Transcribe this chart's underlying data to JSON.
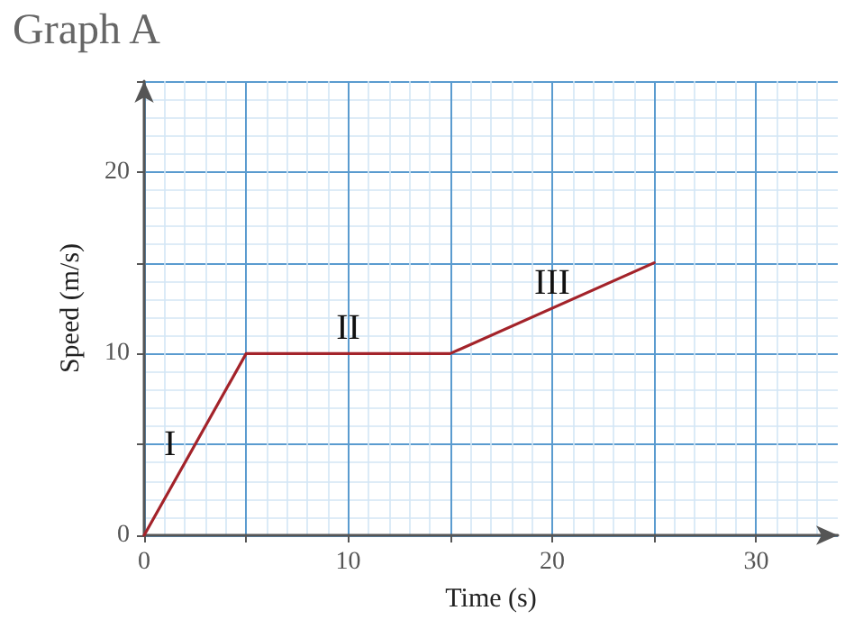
{
  "chart_data": {
    "type": "line",
    "title": "Graph A",
    "xlabel": "Time (s)",
    "ylabel": "Speed (m/s)",
    "x": [
      0,
      5,
      15,
      25
    ],
    "series": [
      {
        "color": "#a3232a",
        "values": [
          0,
          10,
          10,
          15
        ]
      }
    ],
    "xlim": [
      0,
      34
    ],
    "xticks": [
      0,
      {
        "value": 5,
        "label": null
      },
      10,
      {
        "value": 15,
        "label": null
      },
      20,
      {
        "value": 25,
        "label": null
      },
      30
    ],
    "ylim": [
      0,
      25
    ],
    "yticks": [
      0,
      {
        "value": 5,
        "label": null
      },
      10,
      {
        "value": 15,
        "label": null
      },
      20,
      {
        "value": 25,
        "label": null
      }
    ],
    "grid": true,
    "marker": "none",
    "line_style": "solid",
    "annotations": [
      "I",
      "II",
      "III"
    ]
  }
}
